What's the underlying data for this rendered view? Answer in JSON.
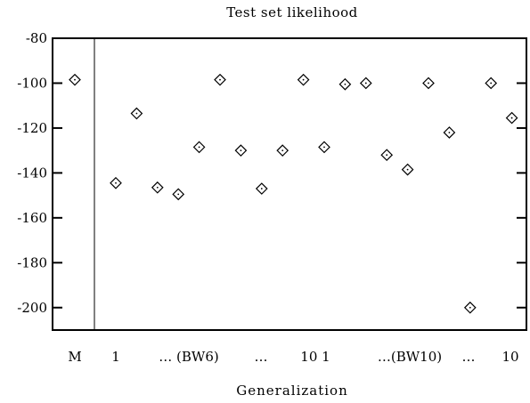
{
  "chart_data": {
    "type": "scatter",
    "title": "Test set likelihood",
    "xlabel": "Generalization",
    "ylabel": "",
    "ylim": [
      -210,
      -80
    ],
    "yticks": [
      -80,
      -100,
      -120,
      -140,
      -160,
      -180,
      -200
    ],
    "grid": false,
    "legend": "none",
    "marker": "diamond",
    "x_tick_labels": [
      "M",
      "1",
      "… (BW6)",
      "…",
      "10 1",
      "…(BW10)",
      "…",
      "10"
    ],
    "points": [
      {
        "group": "M",
        "index": 0,
        "y": -98.5
      },
      {
        "group": "BW6",
        "index": 1,
        "y": -144.5
      },
      {
        "group": "BW6",
        "index": 2,
        "y": -113.5
      },
      {
        "group": "BW6",
        "index": 3,
        "y": -146.5
      },
      {
        "group": "BW6",
        "index": 4,
        "y": -149.5
      },
      {
        "group": "BW6",
        "index": 5,
        "y": -128.5
      },
      {
        "group": "BW6",
        "index": 6,
        "y": -98.5
      },
      {
        "group": "BW6",
        "index": 7,
        "y": -130
      },
      {
        "group": "BW6",
        "index": 8,
        "y": -147
      },
      {
        "group": "BW6",
        "index": 9,
        "y": -130
      },
      {
        "group": "BW6",
        "index": 10,
        "y": -98.5
      },
      {
        "group": "BW10",
        "index": 1,
        "y": -128.5
      },
      {
        "group": "BW10",
        "index": 2,
        "y": -100.5
      },
      {
        "group": "BW10",
        "index": 3,
        "y": -100
      },
      {
        "group": "BW10",
        "index": 4,
        "y": -132
      },
      {
        "group": "BW10",
        "index": 5,
        "y": -138.5
      },
      {
        "group": "BW10",
        "index": 6,
        "y": -100
      },
      {
        "group": "BW10",
        "index": 7,
        "y": -122
      },
      {
        "group": "BW10",
        "index": 8,
        "y": -200
      },
      {
        "group": "BW10",
        "index": 9,
        "y": -100
      },
      {
        "group": "BW10",
        "index": 10,
        "y": -115.5
      }
    ]
  }
}
